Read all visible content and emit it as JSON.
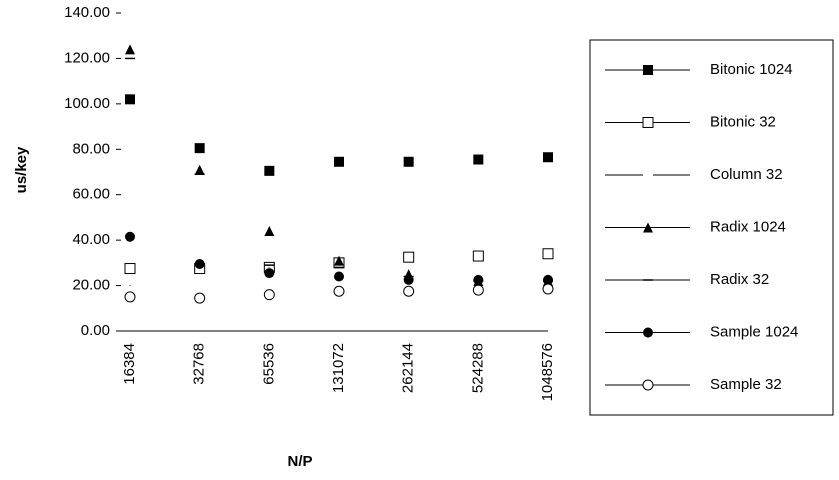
{
  "chart_data": {
    "type": "scatter",
    "x_label": "N/P",
    "y_label": "us/key",
    "categories": [
      "16384",
      "32768",
      "65536",
      "131072",
      "262144",
      "524288",
      "1048576"
    ],
    "ylim": [
      0,
      140
    ],
    "yticks": [
      {
        "value": 0,
        "label": "0.00"
      },
      {
        "value": 20,
        "label": "20.00"
      },
      {
        "value": 40,
        "label": "40.00"
      },
      {
        "value": 60,
        "label": "60.00"
      },
      {
        "value": 80,
        "label": "80.00"
      },
      {
        "value": 100,
        "label": "100.00"
      },
      {
        "value": 120,
        "label": "120.00"
      },
      {
        "value": 140,
        "label": "140.00"
      }
    ],
    "series": [
      {
        "name": "Bitonic  1024",
        "color": "#000000",
        "marker": "square-filled",
        "values": [
          102,
          80.5,
          70.5,
          74.5,
          74.5,
          75.5,
          76.5
        ]
      },
      {
        "name": "Bitonic  32",
        "color": "#000000",
        "marker": "square-open",
        "values": [
          27.5,
          27.5,
          28,
          30,
          32.5,
          33,
          34
        ]
      },
      {
        "name": "Column  32",
        "color": "#000000",
        "marker": "none",
        "values": [
          20,
          29,
          28,
          29,
          24,
          22,
          22
        ]
      },
      {
        "name": "Radix  1024",
        "color": "#000000",
        "marker": "triangle",
        "values": [
          124,
          71,
          44,
          31,
          25,
          22,
          22
        ]
      },
      {
        "name": "Radix  32",
        "color": "#000000",
        "marker": "dash",
        "values": [
          120,
          69,
          29,
          28,
          24,
          22,
          22
        ]
      },
      {
        "name": "Sample  1024",
        "color": "#000000",
        "marker": "circle-filled",
        "values": [
          41.5,
          29.5,
          25.5,
          24,
          22.5,
          22.5,
          22.5
        ]
      },
      {
        "name": "Sample  32",
        "color": "#000000",
        "marker": "circle-open",
        "values": [
          15,
          14.5,
          16,
          17.5,
          17.5,
          18,
          18.5
        ]
      }
    ]
  }
}
